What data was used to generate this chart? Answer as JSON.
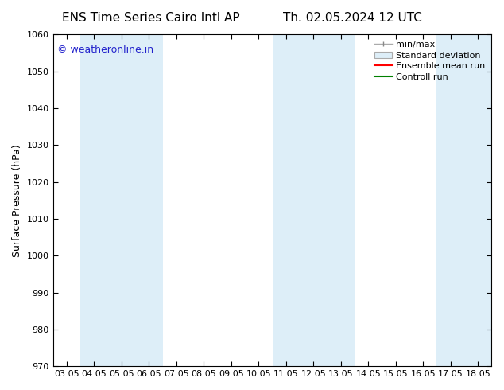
{
  "title_left": "ENS Time Series Cairo Intl AP",
  "title_right": "Th. 02.05.2024 12 UTC",
  "ylabel": "Surface Pressure (hPa)",
  "ylim": [
    970,
    1060
  ],
  "yticks": [
    970,
    980,
    990,
    1000,
    1010,
    1020,
    1030,
    1040,
    1050,
    1060
  ],
  "xtick_labels": [
    "03.05",
    "04.05",
    "05.05",
    "06.05",
    "07.05",
    "08.05",
    "09.05",
    "10.05",
    "11.05",
    "12.05",
    "13.05",
    "14.05",
    "15.05",
    "16.05",
    "17.05",
    "18.05"
  ],
  "band_color": "#ddeef8",
  "watermark_text": "© weatheronline.in",
  "watermark_color": "#2222cc",
  "background_color": "#ffffff",
  "title_fontsize": 11,
  "tick_fontsize": 8,
  "ylabel_fontsize": 9,
  "legend_fontsize": 8
}
